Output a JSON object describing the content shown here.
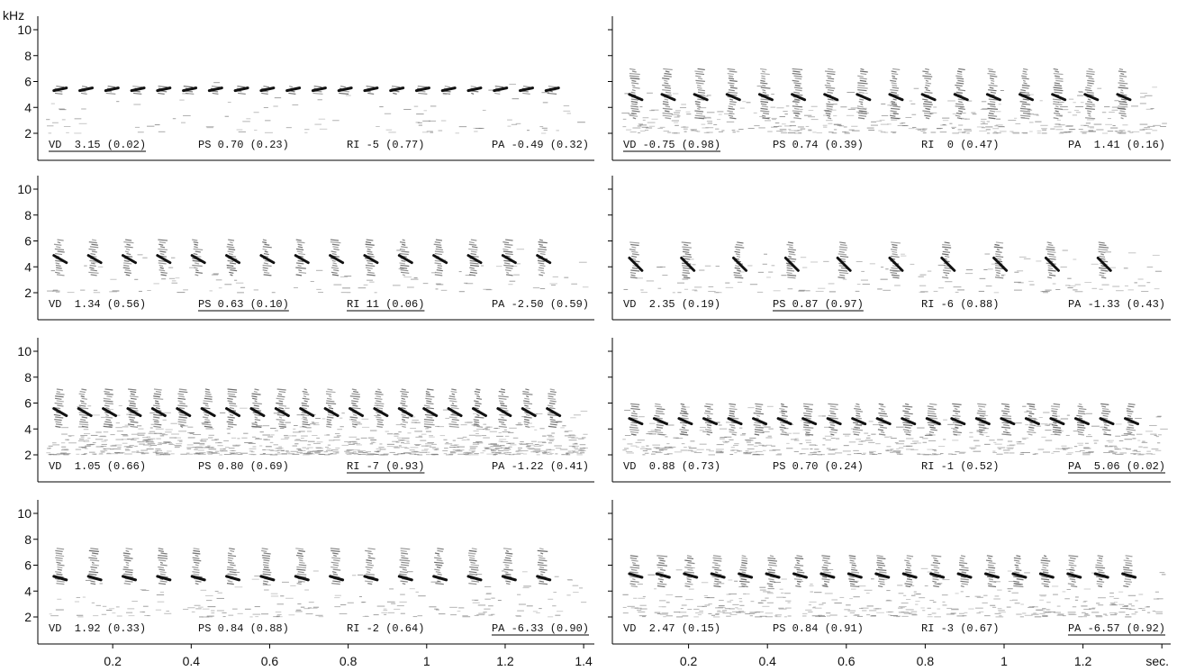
{
  "y_axis": {
    "unit": "kHz",
    "ticks": [
      2,
      4,
      6,
      8,
      10
    ]
  },
  "x_axis": {
    "unit": "sec.",
    "ticks": [
      0.2,
      0.4,
      0.6,
      0.8,
      1.0,
      1.2,
      1.4
    ]
  },
  "panels": [
    {
      "stats": [
        {
          "text": "VD  3.15 (0.02)",
          "underlined": true
        },
        {
          "text": "PS 0.70 (0.23)",
          "underlined": false
        },
        {
          "text": "RI -5 (0.77)",
          "underlined": false
        },
        {
          "text": "PA -0.49 (0.32)",
          "underlined": false
        }
      ]
    },
    {
      "stats": [
        {
          "text": "VD -0.75 (0.98)",
          "underlined": true
        },
        {
          "text": "PS 0.74 (0.39)",
          "underlined": false
        },
        {
          "text": "RI  0 (0.47)",
          "underlined": false
        },
        {
          "text": "PA  1.41 (0.16)",
          "underlined": false
        }
      ]
    },
    {
      "stats": [
        {
          "text": "VD  1.34 (0.56)",
          "underlined": false
        },
        {
          "text": "PS 0.63 (0.10)",
          "underlined": true
        },
        {
          "text": "RI 11 (0.06)",
          "underlined": true
        },
        {
          "text": "PA -2.50 (0.59)",
          "underlined": false
        }
      ]
    },
    {
      "stats": [
        {
          "text": "VD  2.35 (0.19)",
          "underlined": false
        },
        {
          "text": "PS 0.87 (0.97)",
          "underlined": true
        },
        {
          "text": "RI -6 (0.88)",
          "underlined": false
        },
        {
          "text": "PA -1.33 (0.43)",
          "underlined": false
        }
      ]
    },
    {
      "stats": [
        {
          "text": "VD  1.05 (0.66)",
          "underlined": false
        },
        {
          "text": "PS 0.80 (0.69)",
          "underlined": false
        },
        {
          "text": "RI -7 (0.93)",
          "underlined": true
        },
        {
          "text": "PA -1.22 (0.41)",
          "underlined": false
        }
      ]
    },
    {
      "stats": [
        {
          "text": "VD  0.88 (0.73)",
          "underlined": false
        },
        {
          "text": "PS 0.70 (0.24)",
          "underlined": false
        },
        {
          "text": "RI -1 (0.52)",
          "underlined": false
        },
        {
          "text": "PA  5.06 (0.02)",
          "underlined": true
        }
      ]
    },
    {
      "stats": [
        {
          "text": "VD  1.92 (0.33)",
          "underlined": false
        },
        {
          "text": "PS 0.84 (0.88)",
          "underlined": false
        },
        {
          "text": "RI -2 (0.64)",
          "underlined": false
        },
        {
          "text": "PA -6.33 (0.90)",
          "underlined": true
        }
      ]
    },
    {
      "stats": [
        {
          "text": "VD  2.47 (0.15)",
          "underlined": false
        },
        {
          "text": "PS 0.84 (0.91)",
          "underlined": false
        },
        {
          "text": "RI -3 (0.67)",
          "underlined": false
        },
        {
          "text": "PA -6.57 (0.92)",
          "underlined": true
        }
      ]
    }
  ]
}
